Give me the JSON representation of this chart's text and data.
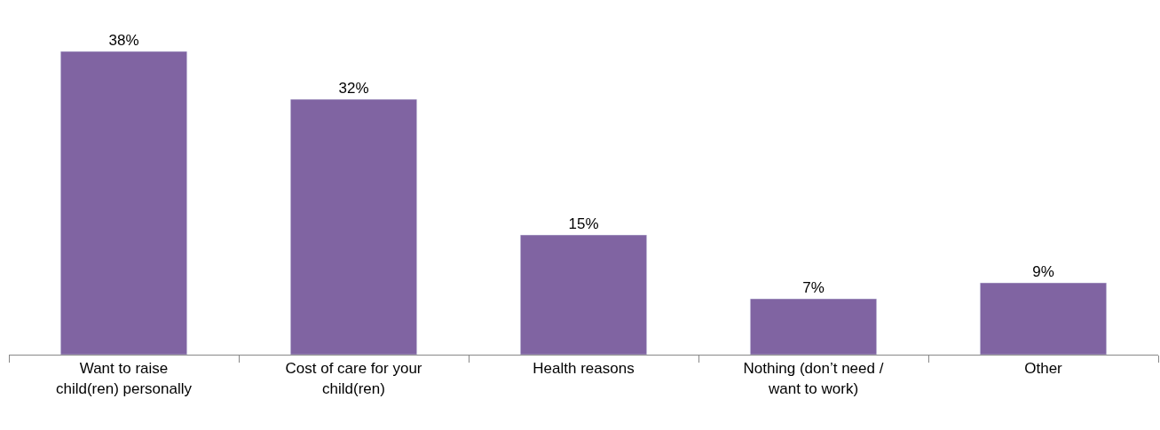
{
  "chart_data": {
    "type": "bar",
    "categories": [
      "Want to raise child(ren) personally",
      "Cost of care for your child(ren)",
      "Health reasons",
      "Nothing (don’t need / want to work)",
      "Other"
    ],
    "values": [
      38,
      32,
      15,
      7,
      9
    ],
    "value_labels": [
      "38%",
      "32%",
      "15%",
      "7%",
      "9%"
    ],
    "color": "#8064a2",
    "tick_labels": "x"
  }
}
